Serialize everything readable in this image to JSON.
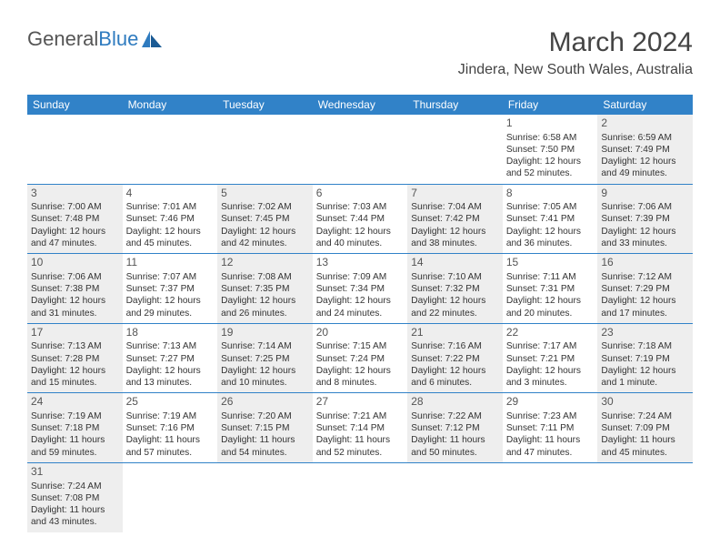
{
  "logo": {
    "part1": "General",
    "part2": "Blue"
  },
  "title": "March 2024",
  "location": "Jindera, New South Wales, Australia",
  "colors": {
    "header_bg": "#3182c8",
    "header_text": "#ffffff",
    "alt_row": "#eeeeee",
    "text": "#333333",
    "logo_gray": "#555555",
    "logo_blue": "#2f7bbf"
  },
  "day_headers": [
    "Sunday",
    "Monday",
    "Tuesday",
    "Wednesday",
    "Thursday",
    "Friday",
    "Saturday"
  ],
  "weeks": [
    [
      null,
      null,
      null,
      null,
      null,
      {
        "n": "1",
        "sunrise": "Sunrise: 6:58 AM",
        "sunset": "Sunset: 7:50 PM",
        "day1": "Daylight: 12 hours",
        "day2": "and 52 minutes."
      },
      {
        "n": "2",
        "sunrise": "Sunrise: 6:59 AM",
        "sunset": "Sunset: 7:49 PM",
        "day1": "Daylight: 12 hours",
        "day2": "and 49 minutes."
      }
    ],
    [
      {
        "n": "3",
        "sunrise": "Sunrise: 7:00 AM",
        "sunset": "Sunset: 7:48 PM",
        "day1": "Daylight: 12 hours",
        "day2": "and 47 minutes."
      },
      {
        "n": "4",
        "sunrise": "Sunrise: 7:01 AM",
        "sunset": "Sunset: 7:46 PM",
        "day1": "Daylight: 12 hours",
        "day2": "and 45 minutes."
      },
      {
        "n": "5",
        "sunrise": "Sunrise: 7:02 AM",
        "sunset": "Sunset: 7:45 PM",
        "day1": "Daylight: 12 hours",
        "day2": "and 42 minutes."
      },
      {
        "n": "6",
        "sunrise": "Sunrise: 7:03 AM",
        "sunset": "Sunset: 7:44 PM",
        "day1": "Daylight: 12 hours",
        "day2": "and 40 minutes."
      },
      {
        "n": "7",
        "sunrise": "Sunrise: 7:04 AM",
        "sunset": "Sunset: 7:42 PM",
        "day1": "Daylight: 12 hours",
        "day2": "and 38 minutes."
      },
      {
        "n": "8",
        "sunrise": "Sunrise: 7:05 AM",
        "sunset": "Sunset: 7:41 PM",
        "day1": "Daylight: 12 hours",
        "day2": "and 36 minutes."
      },
      {
        "n": "9",
        "sunrise": "Sunrise: 7:06 AM",
        "sunset": "Sunset: 7:39 PM",
        "day1": "Daylight: 12 hours",
        "day2": "and 33 minutes."
      }
    ],
    [
      {
        "n": "10",
        "sunrise": "Sunrise: 7:06 AM",
        "sunset": "Sunset: 7:38 PM",
        "day1": "Daylight: 12 hours",
        "day2": "and 31 minutes."
      },
      {
        "n": "11",
        "sunrise": "Sunrise: 7:07 AM",
        "sunset": "Sunset: 7:37 PM",
        "day1": "Daylight: 12 hours",
        "day2": "and 29 minutes."
      },
      {
        "n": "12",
        "sunrise": "Sunrise: 7:08 AM",
        "sunset": "Sunset: 7:35 PM",
        "day1": "Daylight: 12 hours",
        "day2": "and 26 minutes."
      },
      {
        "n": "13",
        "sunrise": "Sunrise: 7:09 AM",
        "sunset": "Sunset: 7:34 PM",
        "day1": "Daylight: 12 hours",
        "day2": "and 24 minutes."
      },
      {
        "n": "14",
        "sunrise": "Sunrise: 7:10 AM",
        "sunset": "Sunset: 7:32 PM",
        "day1": "Daylight: 12 hours",
        "day2": "and 22 minutes."
      },
      {
        "n": "15",
        "sunrise": "Sunrise: 7:11 AM",
        "sunset": "Sunset: 7:31 PM",
        "day1": "Daylight: 12 hours",
        "day2": "and 20 minutes."
      },
      {
        "n": "16",
        "sunrise": "Sunrise: 7:12 AM",
        "sunset": "Sunset: 7:29 PM",
        "day1": "Daylight: 12 hours",
        "day2": "and 17 minutes."
      }
    ],
    [
      {
        "n": "17",
        "sunrise": "Sunrise: 7:13 AM",
        "sunset": "Sunset: 7:28 PM",
        "day1": "Daylight: 12 hours",
        "day2": "and 15 minutes."
      },
      {
        "n": "18",
        "sunrise": "Sunrise: 7:13 AM",
        "sunset": "Sunset: 7:27 PM",
        "day1": "Daylight: 12 hours",
        "day2": "and 13 minutes."
      },
      {
        "n": "19",
        "sunrise": "Sunrise: 7:14 AM",
        "sunset": "Sunset: 7:25 PM",
        "day1": "Daylight: 12 hours",
        "day2": "and 10 minutes."
      },
      {
        "n": "20",
        "sunrise": "Sunrise: 7:15 AM",
        "sunset": "Sunset: 7:24 PM",
        "day1": "Daylight: 12 hours",
        "day2": "and 8 minutes."
      },
      {
        "n": "21",
        "sunrise": "Sunrise: 7:16 AM",
        "sunset": "Sunset: 7:22 PM",
        "day1": "Daylight: 12 hours",
        "day2": "and 6 minutes."
      },
      {
        "n": "22",
        "sunrise": "Sunrise: 7:17 AM",
        "sunset": "Sunset: 7:21 PM",
        "day1": "Daylight: 12 hours",
        "day2": "and 3 minutes."
      },
      {
        "n": "23",
        "sunrise": "Sunrise: 7:18 AM",
        "sunset": "Sunset: 7:19 PM",
        "day1": "Daylight: 12 hours",
        "day2": "and 1 minute."
      }
    ],
    [
      {
        "n": "24",
        "sunrise": "Sunrise: 7:19 AM",
        "sunset": "Sunset: 7:18 PM",
        "day1": "Daylight: 11 hours",
        "day2": "and 59 minutes."
      },
      {
        "n": "25",
        "sunrise": "Sunrise: 7:19 AM",
        "sunset": "Sunset: 7:16 PM",
        "day1": "Daylight: 11 hours",
        "day2": "and 57 minutes."
      },
      {
        "n": "26",
        "sunrise": "Sunrise: 7:20 AM",
        "sunset": "Sunset: 7:15 PM",
        "day1": "Daylight: 11 hours",
        "day2": "and 54 minutes."
      },
      {
        "n": "27",
        "sunrise": "Sunrise: 7:21 AM",
        "sunset": "Sunset: 7:14 PM",
        "day1": "Daylight: 11 hours",
        "day2": "and 52 minutes."
      },
      {
        "n": "28",
        "sunrise": "Sunrise: 7:22 AM",
        "sunset": "Sunset: 7:12 PM",
        "day1": "Daylight: 11 hours",
        "day2": "and 50 minutes."
      },
      {
        "n": "29",
        "sunrise": "Sunrise: 7:23 AM",
        "sunset": "Sunset: 7:11 PM",
        "day1": "Daylight: 11 hours",
        "day2": "and 47 minutes."
      },
      {
        "n": "30",
        "sunrise": "Sunrise: 7:24 AM",
        "sunset": "Sunset: 7:09 PM",
        "day1": "Daylight: 11 hours",
        "day2": "and 45 minutes."
      }
    ],
    [
      {
        "n": "31",
        "sunrise": "Sunrise: 7:24 AM",
        "sunset": "Sunset: 7:08 PM",
        "day1": "Daylight: 11 hours",
        "day2": "and 43 minutes."
      },
      null,
      null,
      null,
      null,
      null,
      null
    ]
  ]
}
